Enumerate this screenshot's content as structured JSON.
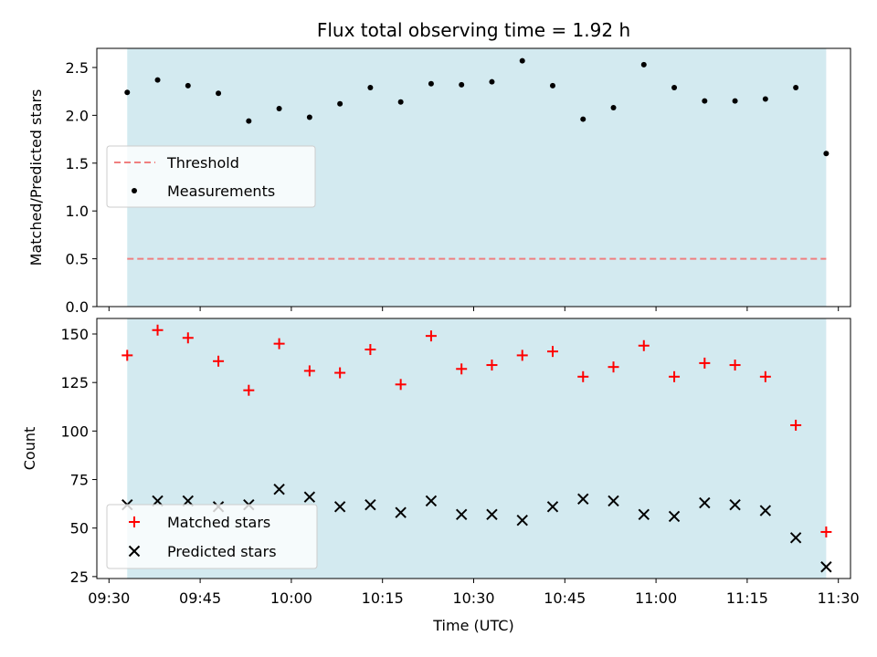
{
  "chart_data": [
    {
      "type": "scatter",
      "title": "Flux total observing time = 1.92 h",
      "xlabel": "",
      "ylabel": "Matched/Predicted stars",
      "ylim": [
        0,
        2.7
      ],
      "yticks": [
        "0.0",
        "0.5",
        "1.0",
        "1.5",
        "2.0",
        "2.5"
      ],
      "shaded_interval": [
        "09:33",
        "11:28"
      ],
      "shade_color": "#d3eaf0",
      "legend_placement": "center-left",
      "threshold": {
        "name": "Threshold",
        "value": 0.5,
        "x_range": [
          "09:33",
          "11:28"
        ],
        "color": "#f07f7f"
      },
      "series": [
        {
          "name": "Measurements",
          "marker": "dot",
          "color": "#000000",
          "x": [
            "09:33",
            "09:38",
            "09:43",
            "09:48",
            "09:53",
            "09:58",
            "10:03",
            "10:08",
            "10:13",
            "10:18",
            "10:23",
            "10:28",
            "10:33",
            "10:38",
            "10:43",
            "10:48",
            "10:53",
            "10:58",
            "11:03",
            "11:08",
            "11:13",
            "11:18",
            "11:23",
            "11:28"
          ],
          "values": [
            2.24,
            2.37,
            2.31,
            2.23,
            1.94,
            2.07,
            1.98,
            2.12,
            2.29,
            2.14,
            2.33,
            2.32,
            2.35,
            2.57,
            2.31,
            1.96,
            2.08,
            2.53,
            2.29,
            2.15,
            2.15,
            2.17,
            2.29,
            1.6
          ]
        }
      ]
    },
    {
      "type": "scatter",
      "title": "",
      "xlabel": "Time (UTC)",
      "ylabel": "Count",
      "ylim": [
        24,
        158
      ],
      "yticks": [
        "25",
        "50",
        "75",
        "100",
        "125",
        "150"
      ],
      "xlim": [
        "09:28",
        "11:32"
      ],
      "xticks": [
        "09:30",
        "09:45",
        "10:00",
        "10:15",
        "10:30",
        "10:45",
        "11:00",
        "11:15",
        "11:30"
      ],
      "shaded_interval": [
        "09:33",
        "11:28"
      ],
      "shade_color": "#d3eaf0",
      "legend_placement": "lower-left",
      "series": [
        {
          "name": "Matched stars",
          "marker": "plus",
          "color": "#ff0000",
          "x": [
            "09:33",
            "09:38",
            "09:43",
            "09:48",
            "09:53",
            "09:58",
            "10:03",
            "10:08",
            "10:13",
            "10:18",
            "10:23",
            "10:28",
            "10:33",
            "10:38",
            "10:43",
            "10:48",
            "10:53",
            "10:58",
            "11:03",
            "11:08",
            "11:13",
            "11:18",
            "11:23",
            "11:28"
          ],
          "values": [
            139,
            152,
            148,
            136,
            121,
            145,
            131,
            130,
            142,
            124,
            149,
            132,
            134,
            139,
            141,
            128,
            133,
            144,
            128,
            135,
            134,
            128,
            103,
            48
          ]
        },
        {
          "name": "Predicted stars",
          "marker": "x",
          "color": "#000000",
          "x": [
            "09:33",
            "09:38",
            "09:43",
            "09:48",
            "09:53",
            "09:58",
            "10:03",
            "10:08",
            "10:13",
            "10:18",
            "10:23",
            "10:28",
            "10:33",
            "10:38",
            "10:43",
            "10:48",
            "10:53",
            "10:58",
            "11:03",
            "11:08",
            "11:13",
            "11:18",
            "11:23",
            "11:28"
          ],
          "values": [
            62,
            64,
            64,
            61,
            62,
            70,
            66,
            61,
            62,
            58,
            64,
            57,
            57,
            54,
            61,
            65,
            64,
            57,
            56,
            63,
            62,
            59,
            45,
            30
          ]
        }
      ]
    }
  ]
}
